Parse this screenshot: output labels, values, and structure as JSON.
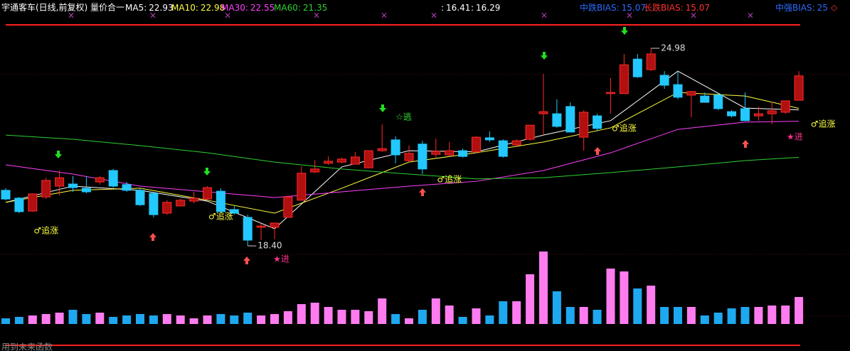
{
  "header": {
    "title": "宇通客车(日线,前复权) 量价合一",
    "extra": [
      {
        "label": ":",
        "value": 16.41
      },
      {
        "label": ":",
        "value": 16.29
      }
    ],
    "bias": [
      {
        "label": "中跌BIAS:",
        "value": 15.07,
        "color": "#2a6bff"
      },
      {
        "label": "长跌BIAS:",
        "value": 15.07,
        "color": "#ff3030"
      },
      {
        "label": "中强BIAS:",
        "value": 25,
        "color": "#2a6bff"
      }
    ]
  },
  "chart_data": {
    "type": "candlestick",
    "ylim": [
      18.07,
      25.76
    ],
    "up_color": "#ff2a2a",
    "down_color": "#22c8ff",
    "ohlc": [
      [
        20.25,
        20.32,
        19.92,
        19.96
      ],
      [
        19.99,
        20.03,
        19.49,
        19.54
      ],
      [
        19.56,
        20.15,
        19.54,
        20.13
      ],
      [
        20.03,
        20.67,
        19.96,
        20.58
      ],
      [
        20.39,
        20.91,
        20.08,
        20.67
      ],
      [
        20.46,
        20.72,
        20.2,
        20.34
      ],
      [
        20.32,
        20.72,
        20.15,
        20.2
      ],
      [
        20.53,
        20.72,
        20.44,
        20.67
      ],
      [
        20.91,
        20.96,
        20.34,
        20.39
      ],
      [
        20.44,
        20.53,
        20.2,
        20.25
      ],
      [
        20.25,
        20.32,
        19.73,
        19.77
      ],
      [
        20.15,
        20.2,
        19.35,
        19.44
      ],
      [
        19.49,
        19.92,
        19.44,
        19.85
      ],
      [
        19.73,
        19.96,
        19.73,
        19.92
      ],
      [
        19.89,
        20.2,
        19.82,
        19.99
      ],
      [
        19.96,
        20.39,
        19.92,
        20.34
      ],
      [
        20.22,
        20.32,
        19.49,
        19.54
      ],
      [
        19.61,
        19.73,
        19.44,
        19.49
      ],
      [
        19.35,
        19.44,
        18.4,
        18.59
      ],
      [
        19.02,
        19.14,
        18.59,
        19.06
      ],
      [
        19.02,
        19.16,
        18.62,
        19.16
      ],
      [
        19.35,
        20.08,
        19.35,
        20.03
      ],
      [
        19.92,
        21.05,
        19.92,
        20.82
      ],
      [
        20.86,
        21.26,
        20.82,
        20.96
      ],
      [
        21.15,
        21.38,
        21.1,
        21.22
      ],
      [
        21.19,
        21.34,
        21.15,
        21.29
      ],
      [
        21.12,
        21.53,
        21.12,
        21.36
      ],
      [
        21.0,
        21.57,
        21.0,
        21.57
      ],
      [
        21.57,
        22.45,
        21.53,
        21.64
      ],
      [
        21.93,
        22.05,
        21.15,
        21.43
      ],
      [
        21.24,
        21.74,
        21.19,
        21.48
      ],
      [
        21.79,
        21.9,
        20.79,
        20.96
      ],
      [
        21.45,
        21.97,
        21.34,
        21.55
      ],
      [
        21.43,
        21.86,
        21.38,
        21.57
      ],
      [
        21.57,
        21.64,
        21.34,
        21.38
      ],
      [
        21.53,
        22.05,
        21.48,
        22.02
      ],
      [
        22.0,
        22.21,
        21.86,
        21.93
      ],
      [
        21.9,
        21.95,
        21.34,
        21.38
      ],
      [
        21.76,
        21.95,
        21.74,
        21.9
      ],
      [
        21.95,
        22.42,
        21.9,
        22.42
      ],
      [
        22.8,
        24.13,
        22.09,
        22.87
      ],
      [
        22.8,
        23.28,
        22.33,
        22.38
      ],
      [
        23.04,
        23.18,
        22.19,
        22.19
      ],
      [
        22.02,
        22.92,
        21.57,
        22.85
      ],
      [
        22.73,
        22.8,
        22.21,
        22.31
      ],
      [
        23.47,
        23.99,
        22.8,
        23.51
      ],
      [
        23.47,
        24.79,
        23.47,
        24.43
      ],
      [
        24.62,
        24.79,
        23.99,
        24.03
      ],
      [
        24.27,
        24.98,
        24.22,
        24.79
      ],
      [
        24.08,
        24.22,
        23.63,
        23.75
      ],
      [
        23.77,
        24.22,
        23.28,
        23.35
      ],
      [
        23.42,
        23.56,
        22.68,
        23.54
      ],
      [
        23.39,
        23.51,
        23.18,
        23.18
      ],
      [
        23.42,
        23.47,
        22.92,
        22.97
      ],
      [
        22.87,
        22.92,
        22.68,
        22.73
      ],
      [
        22.97,
        23.51,
        22.57,
        22.57
      ],
      [
        22.73,
        23.04,
        22.57,
        22.8
      ],
      [
        22.8,
        23.2,
        22.45,
        22.9
      ],
      [
        22.85,
        23.23,
        22.8,
        23.23
      ],
      [
        23.25,
        24.22,
        23.25,
        24.06
      ]
    ],
    "lines": [
      {
        "name": "MA5:",
        "last": 22.93,
        "color": "#ffffff",
        "x": [
          0,
          5,
          10,
          15,
          20,
          25,
          30,
          35,
          40,
          45,
          50,
          55,
          59
        ],
        "values": [
          19.85,
          20.39,
          20.25,
          19.89,
          18.97,
          21.03,
          21.57,
          21.53,
          22.09,
          22.57,
          24.22,
          22.99,
          22.93
        ]
      },
      {
        "name": "MA10:",
        "last": 22.98,
        "color": "#ffff40",
        "x": [
          0,
          5,
          10,
          15,
          20,
          25,
          30,
          35,
          40,
          45,
          50,
          55,
          59
        ],
        "values": [
          19.85,
          20.25,
          20.32,
          19.92,
          19.49,
          20.32,
          21.19,
          21.5,
          21.86,
          22.33,
          23.51,
          23.39,
          22.98
        ]
      },
      {
        "name": "MA30:",
        "last": 22.55,
        "color": "#ff40ff",
        "x": [
          0,
          5,
          10,
          15,
          20,
          25,
          30,
          35,
          40,
          45,
          50,
          55,
          59
        ],
        "values": [
          21.1,
          20.79,
          20.39,
          20.2,
          20.01,
          20.2,
          20.39,
          20.55,
          20.91,
          21.5,
          22.28,
          22.52,
          22.55
        ]
      },
      {
        "name": "MA60:",
        "last": 21.35,
        "color": "#30d030",
        "x": [
          0,
          5,
          10,
          15,
          20,
          25,
          30,
          35,
          40,
          45,
          50,
          55,
          59
        ],
        "values": [
          22.09,
          21.95,
          21.74,
          21.5,
          21.19,
          20.96,
          20.79,
          20.63,
          20.67,
          20.84,
          21.03,
          21.24,
          21.35
        ]
      }
    ],
    "annotations": [
      {
        "text": "♂追涨",
        "x": 3,
        "y": 18.9
      },
      {
        "text": "♂追涨",
        "x": 16,
        "y": 19.37
      },
      {
        "text": "♂追涨",
        "x": 33,
        "y": 20.6
      },
      {
        "text": "♂追涨",
        "x": 46,
        "y": 22.31
      },
      {
        "text": "♂追涨",
        "x": 60.8,
        "y": 22.45
      },
      {
        "text": "☆逃",
        "x": 29.6,
        "y": 22.68
      },
      {
        "text": "★进",
        "x": 20.5,
        "y": 17.95
      },
      {
        "text": "★进",
        "x": 58.7,
        "y": 22.02
      }
    ],
    "price_labels": [
      {
        "value": 18.4,
        "label": "18.40",
        "x": 18
      },
      {
        "value": 24.98,
        "label": "24.98",
        "x": 48
      }
    ],
    "volume": {
      "ylim": [
        0,
        110
      ],
      "values": [
        8,
        10,
        12,
        14,
        16,
        20,
        14,
        16,
        10,
        12,
        14,
        12,
        14,
        12,
        8,
        12,
        14,
        12,
        16,
        12,
        14,
        18,
        28,
        30,
        24,
        20,
        20,
        18,
        36,
        14,
        8,
        20,
        36,
        26,
        10,
        22,
        12,
        32,
        32,
        70,
        102,
        46,
        24,
        24,
        20,
        78,
        74,
        50,
        54,
        24,
        24,
        24,
        12,
        16,
        22,
        24,
        24,
        26,
        26,
        38
      ]
    }
  },
  "footer": "用到未来函数"
}
